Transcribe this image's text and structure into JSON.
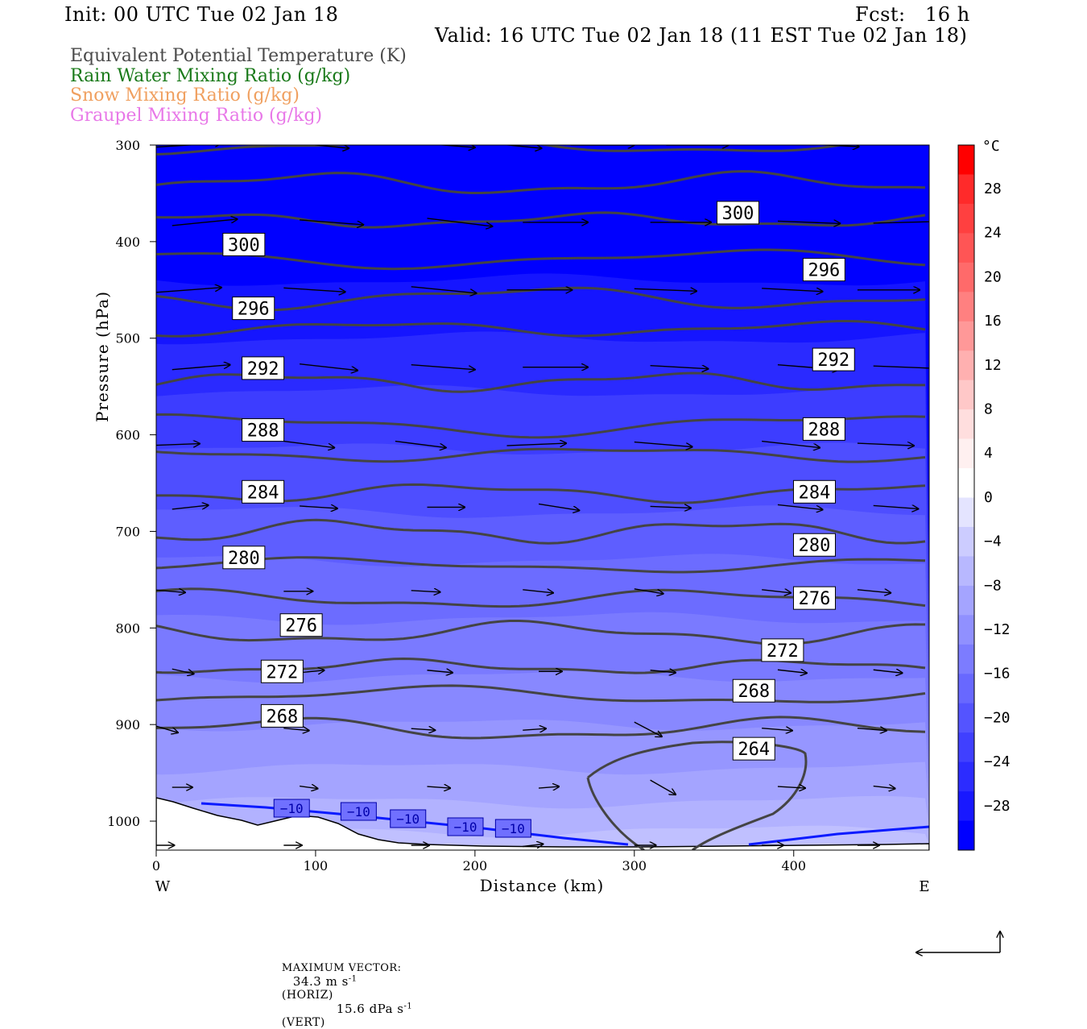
{
  "header": {
    "init": "Init: 00 UTC Tue 02 Jan 18",
    "fcst": "Fcst:   16 h",
    "valid": "Valid: 16 UTC Tue 02 Jan 18 (11 EST Tue 02 Jan 18)"
  },
  "legend": [
    {
      "label": "Equivalent Potential Temperature (K)",
      "color": "#4a4a4a"
    },
    {
      "label": "Rain Water Mixing Ratio (g/kg)",
      "color": "#1a7a1a"
    },
    {
      "label": "Snow Mixing Ratio (g/kg)",
      "color": "#f0a060"
    },
    {
      "label": "Graupel Mixing Ratio (g/kg)",
      "color": "#e878e8"
    }
  ],
  "chart_data": {
    "type": "cross-section",
    "xlabel": "Distance (km)",
    "ylabel": "Pressure (hPa)",
    "x_ticks": [
      0,
      100,
      200,
      300,
      400
    ],
    "y_ticks": [
      300,
      400,
      500,
      600,
      700,
      800,
      900,
      1000
    ],
    "xlim": [
      0,
      485
    ],
    "ylim": [
      300,
      1030
    ],
    "x_left_end": "W",
    "x_right_end": "E",
    "colorbar": {
      "unit": "°C",
      "labels": [
        "28",
        "24",
        "20",
        "16",
        "12",
        "8",
        "4",
        "0",
        "−4",
        "−8",
        "−12",
        "−16",
        "−20",
        "−24",
        "−28"
      ],
      "colors": [
        "#ff0000",
        "#ff2a2a",
        "#ff4040",
        "#ff5555",
        "#ff6a6a",
        "#ff8080",
        "#ff9898",
        "#ffb0b0",
        "#ffc8c8",
        "#ffdede",
        "#fff0f0",
        "#ffffff",
        "#e4e4ff",
        "#ccccff",
        "#b8b8ff",
        "#a4a4ff",
        "#9090ff",
        "#7c7cff",
        "#6868ff",
        "#5454ff",
        "#4040ff",
        "#2c2cff",
        "#1818ff",
        "#0000ff"
      ]
    },
    "theta_e_contours": [
      {
        "level": "264",
        "label_x": 375,
        "label_y": 925
      },
      {
        "level": "268",
        "label_x": 79,
        "label_y": 891
      },
      {
        "level": "268",
        "label_x": 375,
        "label_y": 865
      },
      {
        "level": "272",
        "label_x": 79,
        "label_y": 845
      },
      {
        "level": "272",
        "label_x": 393,
        "label_y": 823
      },
      {
        "level": "276",
        "label_x": 91,
        "label_y": 797
      },
      {
        "level": "276",
        "label_x": 413,
        "label_y": 769
      },
      {
        "level": "280",
        "label_x": 55,
        "label_y": 727
      },
      {
        "level": "280",
        "label_x": 413,
        "label_y": 714
      },
      {
        "level": "284",
        "label_x": 67,
        "label_y": 659
      },
      {
        "level": "284",
        "label_x": 413,
        "label_y": 659
      },
      {
        "level": "288",
        "label_x": 67,
        "label_y": 595
      },
      {
        "level": "288",
        "label_x": 419,
        "label_y": 594
      },
      {
        "level": "292",
        "label_x": 67,
        "label_y": 531
      },
      {
        "level": "292",
        "label_x": 425,
        "label_y": 522
      },
      {
        "level": "296",
        "label_x": 61,
        "label_y": 469
      },
      {
        "level": "296",
        "label_x": 419,
        "label_y": 429
      },
      {
        "level": "300",
        "label_x": 55,
        "label_y": 403
      },
      {
        "level": "300",
        "label_x": 365,
        "label_y": 370
      }
    ],
    "temperature_contour": {
      "level": "−10",
      "labels_x": [
        85,
        127,
        158,
        194,
        224
      ]
    },
    "max_vector": {
      "label": "MAXIMUM VECTOR:",
      "horiz": "34.3 m s",
      "horiz_unit": "(HORIZ)",
      "vert": "15.6 dPa s",
      "vert_unit": "(VERT)",
      "exp": "-1"
    }
  }
}
